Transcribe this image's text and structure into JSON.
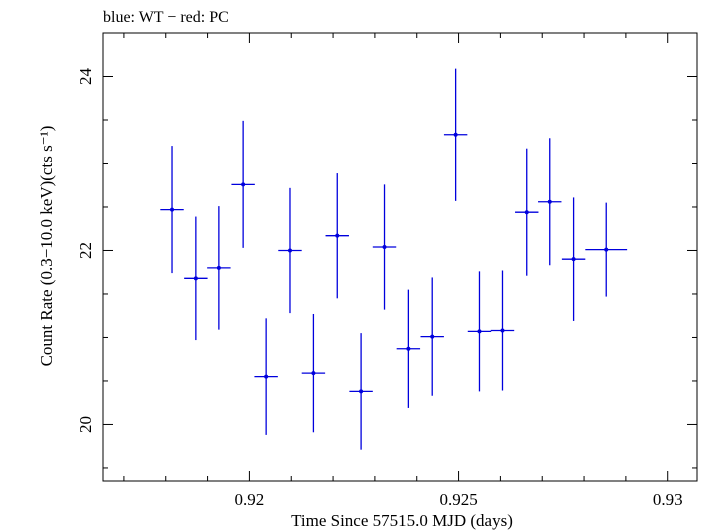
{
  "header": {
    "title": "blue: WT − red: PC"
  },
  "chart_data": {
    "type": "scatter",
    "title": "blue: WT − red: PC",
    "xlabel": "Time Since 57515.0 MJD (days)",
    "ylabel": "Count Rate (0.3−10.0 keV)(cts s⁻¹)",
    "xlim": [
      0.9165,
      0.9307
    ],
    "ylim": [
      19.35,
      24.5
    ],
    "xticks": [
      0.92,
      0.925,
      0.93
    ],
    "xtick_labels": [
      "0.92",
      "0.925",
      "0.93"
    ],
    "yticks": [
      20,
      22,
      24
    ],
    "ytick_labels": [
      "20",
      "22",
      "24"
    ],
    "grid": false,
    "series": [
      {
        "color": "#0000dd",
        "points": [
          {
            "x": 0.91815,
            "xerr": 0.00028,
            "y": 22.47,
            "yerr": 0.73
          },
          {
            "x": 0.91872,
            "xerr": 0.00028,
            "y": 21.68,
            "yerr": 0.71
          },
          {
            "x": 0.91927,
            "xerr": 0.00028,
            "y": 21.8,
            "yerr": 0.71
          },
          {
            "x": 0.91985,
            "xerr": 0.00028,
            "y": 22.76,
            "yerr": 0.73
          },
          {
            "x": 0.9204,
            "xerr": 0.00028,
            "y": 20.55,
            "yerr": 0.67
          },
          {
            "x": 0.92097,
            "xerr": 0.00028,
            "y": 22.0,
            "yerr": 0.72
          },
          {
            "x": 0.92153,
            "xerr": 0.00028,
            "y": 20.59,
            "yerr": 0.68
          },
          {
            "x": 0.9221,
            "xerr": 0.00028,
            "y": 22.17,
            "yerr": 0.72
          },
          {
            "x": 0.92267,
            "xerr": 0.00028,
            "y": 20.38,
            "yerr": 0.67
          },
          {
            "x": 0.92323,
            "xerr": 0.00028,
            "y": 22.04,
            "yerr": 0.72
          },
          {
            "x": 0.9238,
            "xerr": 0.00028,
            "y": 20.87,
            "yerr": 0.68
          },
          {
            "x": 0.92437,
            "xerr": 0.00028,
            "y": 21.01,
            "yerr": 0.68
          },
          {
            "x": 0.92493,
            "xerr": 0.00028,
            "y": 23.33,
            "yerr": 0.76
          },
          {
            "x": 0.9255,
            "xerr": 0.00028,
            "y": 21.07,
            "yerr": 0.69
          },
          {
            "x": 0.92605,
            "xerr": 0.00028,
            "y": 21.08,
            "yerr": 0.69
          },
          {
            "x": 0.92663,
            "xerr": 0.00028,
            "y": 22.44,
            "yerr": 0.73
          },
          {
            "x": 0.92718,
            "xerr": 0.00028,
            "y": 22.56,
            "yerr": 0.73
          },
          {
            "x": 0.92775,
            "xerr": 0.00028,
            "y": 21.9,
            "yerr": 0.71
          },
          {
            "x": 0.92853,
            "xerr": 0.0005,
            "y": 22.01,
            "yerr": 0.54
          }
        ]
      }
    ]
  }
}
